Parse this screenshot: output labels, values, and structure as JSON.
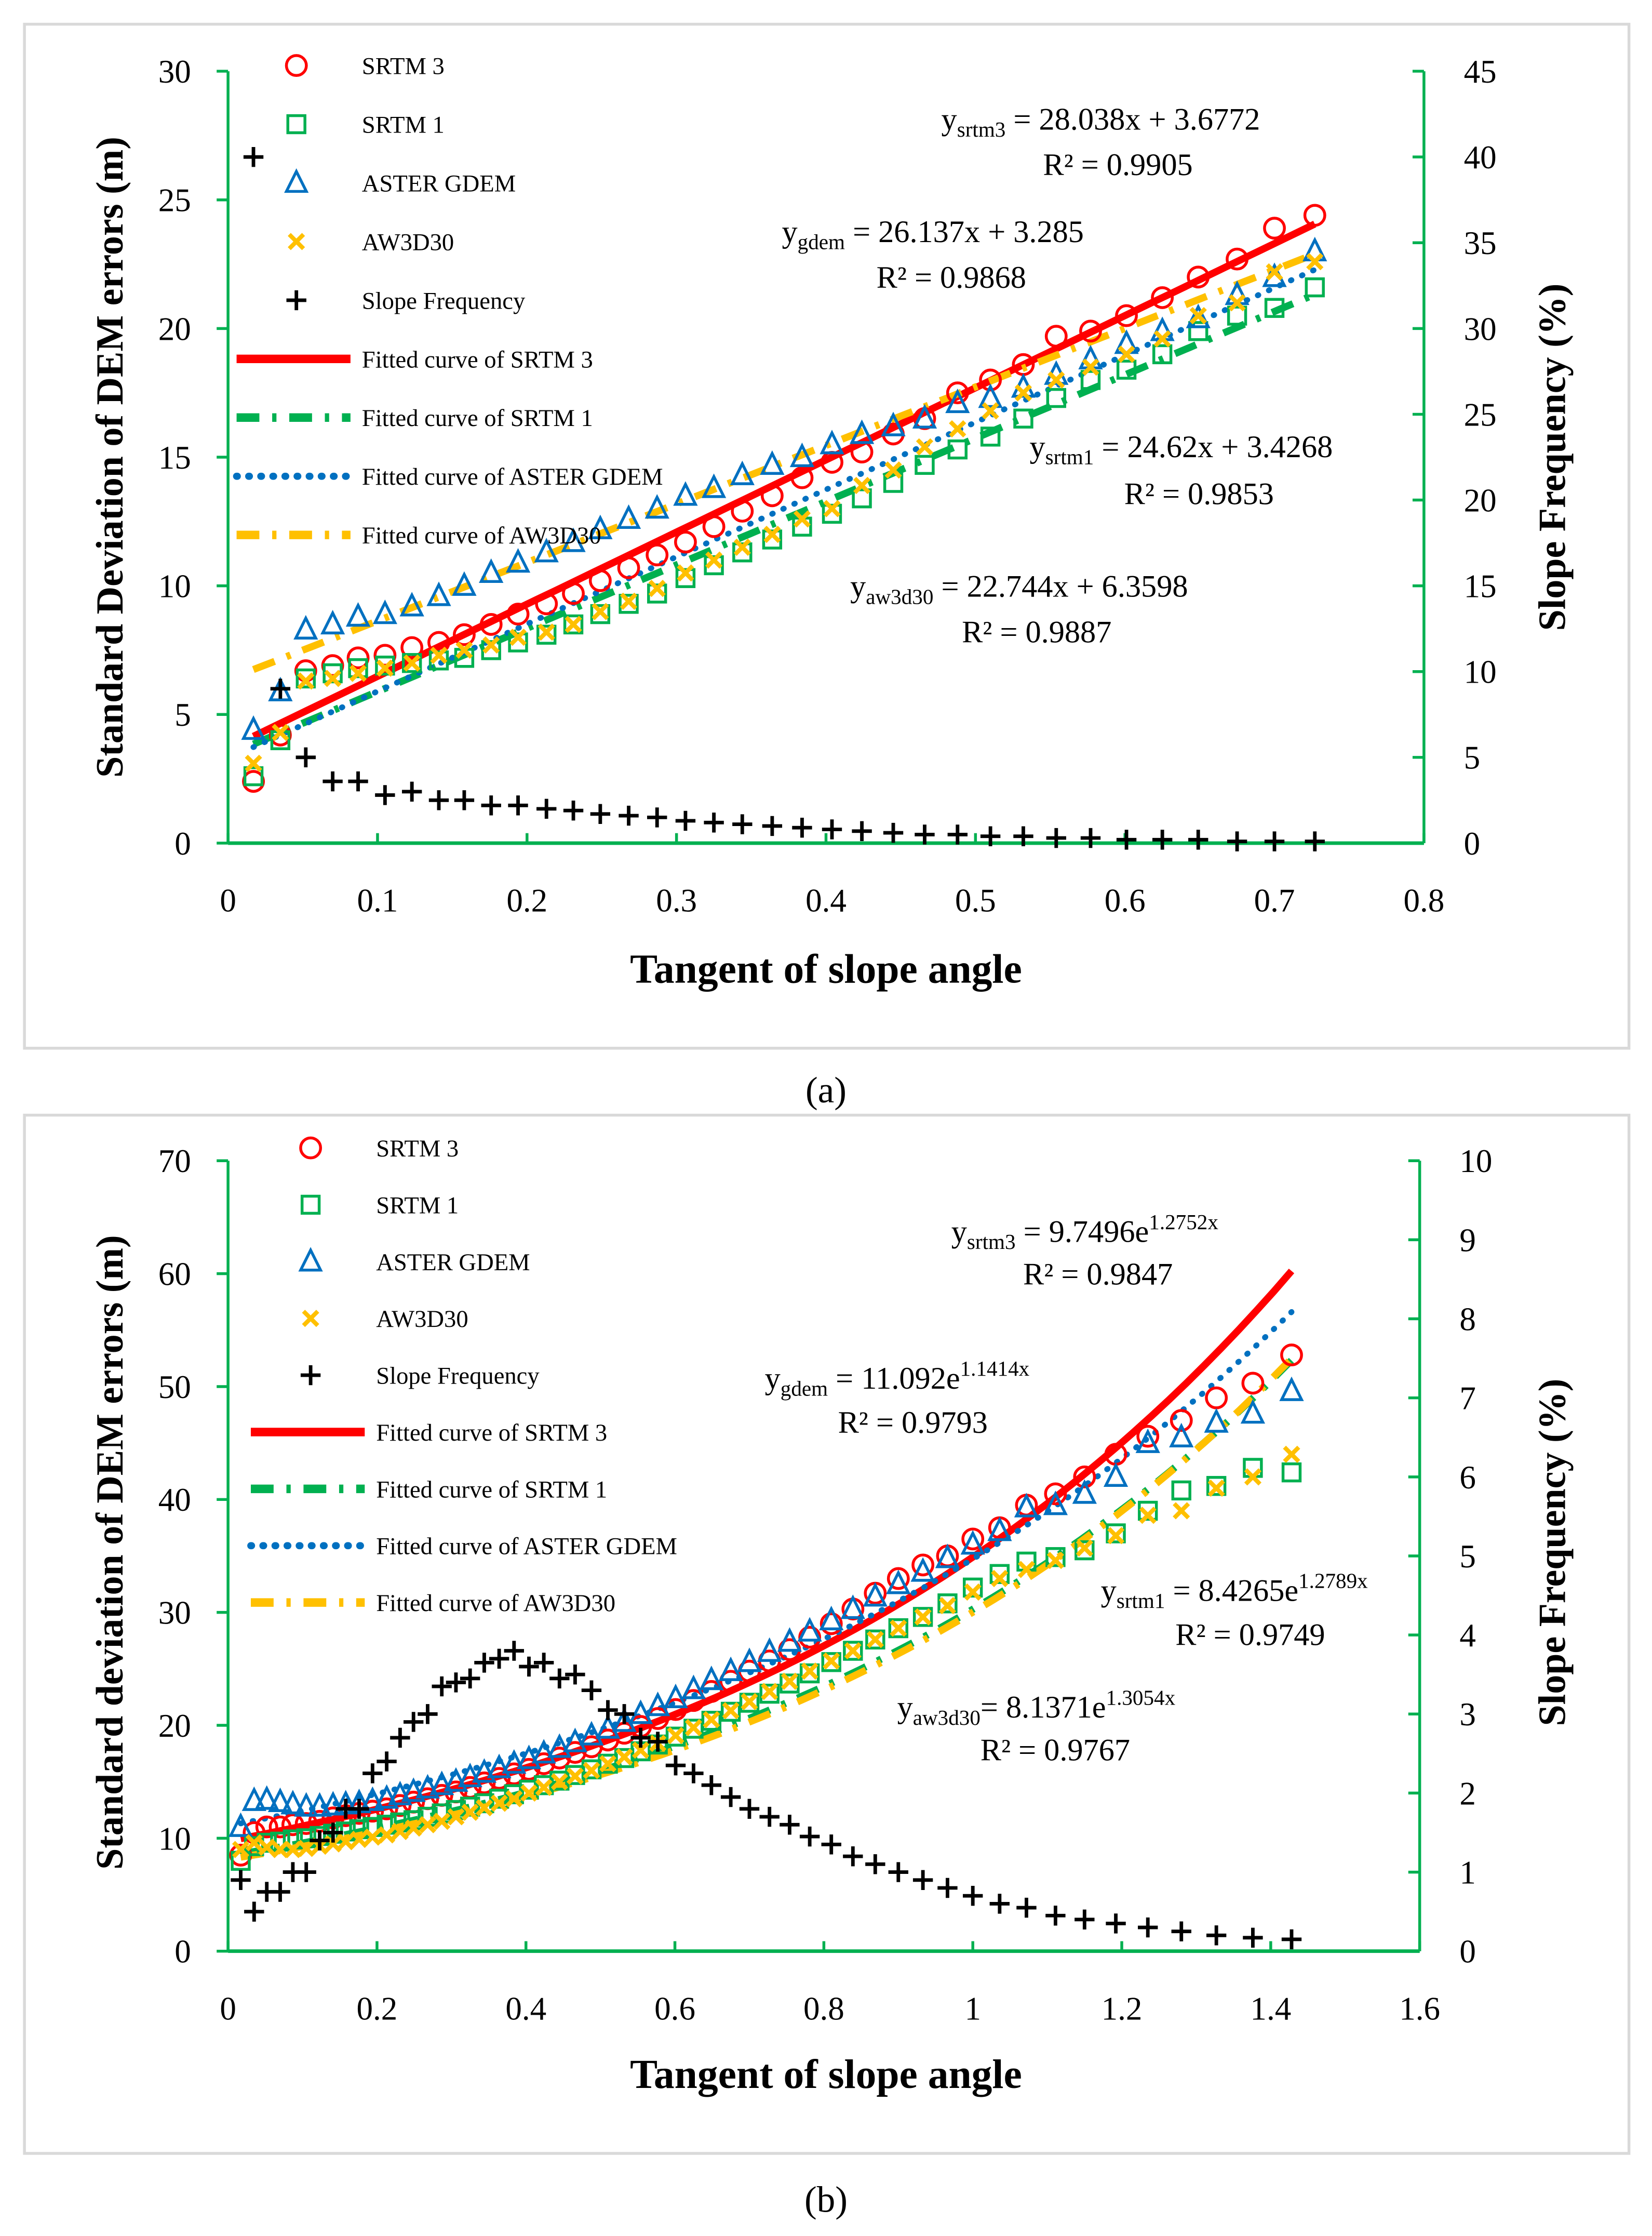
{
  "colors": {
    "srtm3": "#FF0000",
    "srtm1": "#00B050",
    "aster": "#0070C0",
    "aw3d30": "#FFC000",
    "freq": "#000000",
    "axis_right": "#00B050",
    "frame": "#D9D9D9"
  },
  "chart_data": [
    {
      "panel_label": "(a)",
      "type": "scatter",
      "xlabel": "Tangent of slope angle",
      "ylabel": "Standard Deviation of DEM errors (m)",
      "y2label": "Slope Frequency (%)",
      "xlim": [
        0,
        0.8
      ],
      "ylim": [
        0,
        30
      ],
      "y2lim": [
        0,
        45
      ],
      "xticks": [
        "0",
        "0.1",
        "0.2",
        "0.3",
        "0.4",
        "0.5",
        "0.6",
        "0.7",
        "0.8"
      ],
      "yticks": [
        "0",
        "5",
        "10",
        "15",
        "20",
        "25",
        "30"
      ],
      "y2ticks": [
        "0",
        "5",
        "10",
        "15",
        "20",
        "25",
        "30",
        "35",
        "40",
        "45"
      ],
      "grid": false,
      "legend_position": "top-left",
      "x": [
        0.017,
        0.035,
        0.052,
        0.07,
        0.087,
        0.105,
        0.123,
        0.141,
        0.158,
        0.176,
        0.194,
        0.213,
        0.231,
        0.249,
        0.268,
        0.287,
        0.306,
        0.325,
        0.344,
        0.364,
        0.384,
        0.404,
        0.424,
        0.445,
        0.466,
        0.488,
        0.51,
        0.532,
        0.554,
        0.577,
        0.601,
        0.625,
        0.649,
        0.675,
        0.7,
        0.727
      ],
      "series": [
        {
          "key": "srtm3",
          "name": "SRTM 3",
          "marker": "circle",
          "axis": "left",
          "values": [
            2.4,
            4.2,
            6.7,
            6.9,
            7.2,
            7.3,
            7.6,
            7.8,
            8.1,
            8.5,
            8.9,
            9.3,
            9.7,
            10.2,
            10.7,
            11.2,
            11.7,
            12.3,
            12.9,
            13.5,
            14.2,
            14.8,
            15.2,
            15.9,
            16.5,
            17.5,
            18.0,
            18.6,
            19.7,
            19.9,
            20.5,
            21.2,
            22.0,
            22.7,
            23.9,
            24.4
          ]
        },
        {
          "key": "srtm1",
          "name": "SRTM 1",
          "marker": "square",
          "axis": "left",
          "values": [
            2.6,
            4.0,
            6.4,
            6.6,
            6.8,
            6.9,
            7.0,
            7.1,
            7.2,
            7.5,
            7.8,
            8.1,
            8.5,
            8.9,
            9.3,
            9.7,
            10.3,
            10.8,
            11.3,
            11.8,
            12.3,
            12.8,
            13.4,
            14.0,
            14.7,
            15.3,
            15.8,
            16.5,
            17.3,
            18.0,
            18.4,
            19.0,
            19.9,
            20.5,
            20.8,
            21.6
          ]
        },
        {
          "key": "aster",
          "name": "ASTER GDEM",
          "marker": "triangle",
          "axis": "left",
          "values": [
            4.4,
            5.9,
            8.3,
            8.5,
            8.8,
            8.9,
            9.2,
            9.6,
            10.0,
            10.5,
            10.9,
            11.3,
            11.7,
            12.2,
            12.6,
            13.0,
            13.5,
            13.8,
            14.3,
            14.7,
            15.0,
            15.5,
            15.9,
            16.2,
            16.5,
            17.1,
            17.3,
            17.7,
            18.2,
            18.8,
            19.4,
            19.9,
            20.4,
            21.3,
            22.0,
            23.0
          ]
        },
        {
          "key": "aw3d30",
          "name": "AW3D30",
          "marker": "x",
          "axis": "left",
          "values": [
            3.1,
            4.3,
            6.3,
            6.4,
            6.6,
            6.8,
            7.0,
            7.3,
            7.5,
            7.7,
            8.0,
            8.2,
            8.5,
            9.0,
            9.4,
            9.9,
            10.5,
            11.0,
            11.5,
            12.0,
            12.6,
            13.0,
            13.9,
            14.5,
            15.4,
            16.1,
            16.8,
            17.5,
            18.0,
            18.5,
            19.0,
            19.6,
            20.5,
            21.0,
            22.2,
            22.6
          ]
        },
        {
          "key": "freq",
          "name": "Slope Frequency",
          "marker": "plus",
          "axis": "right",
          "values": [
            40.0,
            9.0,
            5.0,
            3.6,
            3.6,
            2.8,
            3.0,
            2.5,
            2.5,
            2.2,
            2.2,
            2.0,
            1.9,
            1.7,
            1.6,
            1.5,
            1.3,
            1.2,
            1.1,
            1.0,
            0.9,
            0.8,
            0.7,
            0.6,
            0.5,
            0.5,
            0.4,
            0.4,
            0.3,
            0.3,
            0.2,
            0.2,
            0.2,
            0.1,
            0.1,
            0.1
          ]
        }
      ],
      "fits": [
        {
          "key": "srtm3",
          "name": "Fitted curve of SRTM 3",
          "model": "linear",
          "a": 28.038,
          "b": 3.6772,
          "eq_y": "y",
          "eq_sub": "srtm3",
          "eq_rhs": " = 28.038x + 3.6772",
          "eq_sup": "",
          "r2": "R² = 0.9905"
        },
        {
          "key": "srtm1",
          "name": "Fitted curve of SRTM 1",
          "model": "linear",
          "a": 24.62,
          "b": 3.4268,
          "eq_y": "y",
          "eq_sub": "srtm1",
          "eq_rhs": " = 24.62x + 3.4268",
          "eq_sup": "",
          "r2": "R² = 0.9853"
        },
        {
          "key": "aster",
          "name": "Fitted curve of ASTER GDEM",
          "model": "linear",
          "a": 26.137,
          "b": 3.285,
          "eq_y": "y",
          "eq_sub": "gdem",
          "eq_rhs": " = 26.137x + 3.285",
          "eq_sup": "",
          "r2": "R² = 0.9868"
        },
        {
          "key": "aw3d30",
          "name": "Fitted curve of AW3D30",
          "model": "linear",
          "a": 22.744,
          "b": 6.3598,
          "eq_y": "y",
          "eq_sub": "aw3d30",
          "eq_rhs": " = 22.744x + 6.3598",
          "eq_sup": "",
          "r2": "R² = 0.9887"
        }
      ]
    },
    {
      "panel_label": "(b)",
      "type": "scatter",
      "xlabel": "Tangent of slope angle",
      "ylabel": "Standard deviation of DEM errors (m)",
      "y2label": "Slope Frequency (%)",
      "xlim": [
        0,
        1.6
      ],
      "ylim": [
        0,
        70
      ],
      "y2lim": [
        0,
        10
      ],
      "xticks": [
        "0",
        "0.2",
        "0.4",
        "0.6",
        "0.8",
        "1",
        "1.2",
        "1.4",
        "1.6"
      ],
      "yticks": [
        "0",
        "10",
        "20",
        "30",
        "40",
        "50",
        "60",
        "70"
      ],
      "y2ticks": [
        "0",
        "1",
        "2",
        "3",
        "4",
        "5",
        "6",
        "7",
        "8",
        "9",
        "10"
      ],
      "grid": false,
      "legend_position": "top-left",
      "x": [
        0.017,
        0.035,
        0.052,
        0.07,
        0.087,
        0.105,
        0.123,
        0.141,
        0.158,
        0.176,
        0.194,
        0.213,
        0.231,
        0.249,
        0.268,
        0.287,
        0.306,
        0.325,
        0.344,
        0.364,
        0.384,
        0.404,
        0.424,
        0.445,
        0.466,
        0.488,
        0.51,
        0.532,
        0.554,
        0.577,
        0.601,
        0.625,
        0.649,
        0.675,
        0.7,
        0.727,
        0.754,
        0.781,
        0.81,
        0.839,
        0.869,
        0.9,
        0.933,
        0.966,
        1.0,
        1.036,
        1.072,
        1.111,
        1.15,
        1.192,
        1.235,
        1.28,
        1.327,
        1.376,
        1.428
      ],
      "series": [
        {
          "key": "srtm3",
          "name": "SRTM 3",
          "marker": "circle",
          "axis": "left",
          "values": [
            8.5,
            10.5,
            11.0,
            11.0,
            11.2,
            11.3,
            11.5,
            11.8,
            12.0,
            12.2,
            12.4,
            12.6,
            12.9,
            13.2,
            13.5,
            13.8,
            14.1,
            14.5,
            14.9,
            15.3,
            15.7,
            16.1,
            16.6,
            17.1,
            17.6,
            18.1,
            18.7,
            19.3,
            19.9,
            20.6,
            21.4,
            22.2,
            23.0,
            23.9,
            24.8,
            25.7,
            26.7,
            27.8,
            29.0,
            30.3,
            31.7,
            33.0,
            34.2,
            35.0,
            36.5,
            37.5,
            39.5,
            40.5,
            42.0,
            44.0,
            45.6,
            47.0,
            49.0,
            50.3,
            52.8
          ]
        },
        {
          "key": "srtm1",
          "name": "SRTM 1",
          "marker": "square",
          "axis": "left",
          "values": [
            8.0,
            9.3,
            9.6,
            9.7,
            9.9,
            10.0,
            10.2,
            10.4,
            10.6,
            10.8,
            11.0,
            11.2,
            11.4,
            11.6,
            11.9,
            12.2,
            12.5,
            12.8,
            13.1,
            13.5,
            13.9,
            14.3,
            14.7,
            15.1,
            15.6,
            16.1,
            16.6,
            17.1,
            17.7,
            18.3,
            19.0,
            19.7,
            20.4,
            21.2,
            22.0,
            22.8,
            23.7,
            24.6,
            25.6,
            26.6,
            27.6,
            28.6,
            29.6,
            30.8,
            32.2,
            33.4,
            34.5,
            34.9,
            35.5,
            37.0,
            39.0,
            40.8,
            41.2,
            42.8,
            42.4
          ]
        },
        {
          "key": "aster",
          "name": "ASTER GDEM",
          "marker": "triangle",
          "axis": "left",
          "values": [
            11.0,
            13.3,
            13.4,
            13.2,
            13.0,
            12.8,
            12.8,
            12.9,
            13.0,
            13.1,
            13.3,
            13.5,
            13.8,
            14.1,
            14.4,
            14.7,
            15.0,
            15.4,
            15.8,
            16.2,
            16.6,
            17.0,
            17.5,
            18.0,
            18.5,
            19.1,
            19.7,
            20.3,
            21.0,
            21.7,
            22.4,
            23.2,
            24.0,
            24.8,
            25.6,
            26.5,
            27.4,
            28.3,
            29.3,
            30.3,
            31.4,
            32.5,
            33.6,
            34.8,
            36.0,
            37.2,
            39.3,
            39.5,
            40.5,
            42.0,
            45.0,
            45.5,
            46.8,
            47.6,
            49.6
          ]
        },
        {
          "key": "aw3d30",
          "name": "AW3D30",
          "marker": "x",
          "axis": "left",
          "values": [
            9.0,
            9.6,
            9.2,
            9.0,
            9.0,
            9.1,
            9.3,
            9.5,
            9.7,
            9.9,
            10.1,
            10.3,
            10.6,
            10.9,
            11.2,
            11.5,
            11.9,
            12.3,
            12.7,
            13.1,
            13.5,
            14.0,
            14.5,
            15.0,
            15.5,
            16.0,
            16.6,
            17.2,
            17.8,
            18.4,
            19.1,
            19.8,
            20.5,
            21.3,
            22.1,
            23.0,
            23.9,
            24.8,
            25.7,
            26.6,
            27.6,
            28.6,
            29.6,
            30.6,
            31.8,
            33.0,
            33.8,
            34.6,
            35.7,
            36.8,
            38.6,
            39.0,
            41.0,
            42.0,
            44.0
          ]
        },
        {
          "key": "freq",
          "name": "Slope Frequency",
          "marker": "plus",
          "axis": "right",
          "values": [
            0.9,
            0.5,
            0.75,
            0.75,
            1.0,
            1.0,
            1.4,
            1.5,
            1.8,
            1.8,
            2.25,
            2.4,
            2.7,
            2.9,
            3.0,
            3.35,
            3.4,
            3.45,
            3.65,
            3.7,
            3.8,
            3.6,
            3.65,
            3.45,
            3.5,
            3.3,
            3.05,
            3.0,
            2.7,
            2.65,
            2.35,
            2.25,
            2.1,
            1.95,
            1.8,
            1.7,
            1.6,
            1.45,
            1.35,
            1.2,
            1.1,
            1.0,
            0.9,
            0.8,
            0.7,
            0.6,
            0.55,
            0.45,
            0.4,
            0.35,
            0.3,
            0.25,
            0.2,
            0.17,
            0.15
          ]
        }
      ],
      "fits": [
        {
          "key": "srtm3",
          "name": "Fitted curve of SRTM 3",
          "model": "exponential",
          "a": 9.7496,
          "b": 1.2752,
          "eq_y": "y",
          "eq_sub": "srtm3",
          "eq_rhs": " = 9.7496e",
          "eq_sup": "1.2752x",
          "r2": "R² = 0.9847"
        },
        {
          "key": "srtm1",
          "name": "Fitted curve of SRTM 1",
          "model": "exponential",
          "a": 8.4265,
          "b": 1.2789,
          "eq_y": "y",
          "eq_sub": "srtm1",
          "eq_rhs": " = 8.4265e",
          "eq_sup": "1.2789x",
          "r2": "R² = 0.9749"
        },
        {
          "key": "aster",
          "name": "Fitted curve of ASTER GDEM",
          "model": "exponential",
          "a": 11.092,
          "b": 1.1414,
          "eq_y": "y",
          "eq_sub": "gdem",
          "eq_rhs": " = 11.092e",
          "eq_sup": "1.1414x",
          "r2": "R² = 0.9793"
        },
        {
          "key": "aw3d30",
          "name": "Fitted curve of AW3D30",
          "model": "exponential",
          "a": 8.1371,
          "b": 1.3054,
          "eq_y": "y",
          "eq_sub": "aw3d30",
          "eq_rhs": "= 8.1371e",
          "eq_sup": "1.3054x",
          "r2": "R² = 0.9767"
        }
      ]
    }
  ]
}
